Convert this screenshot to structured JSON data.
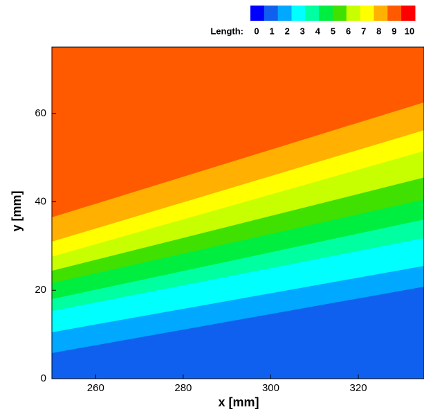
{
  "chart_data": {
    "type": "contour",
    "xlabel": "x [mm]",
    "ylabel": "y [mm]",
    "xlim": [
      250,
      335
    ],
    "ylim": [
      0,
      75
    ],
    "xticks": [
      260,
      280,
      300,
      320
    ],
    "yticks": [
      0,
      20,
      40,
      60
    ],
    "legend_title": "Length:",
    "legend_levels": [
      0,
      1,
      2,
      3,
      4,
      5,
      6,
      7,
      8,
      9,
      10
    ],
    "colors": [
      "#0000ff",
      "#1060f0",
      "#00a8ff",
      "#00ffff",
      "#00ffa0",
      "#00ee40",
      "#40e000",
      "#c8ff00",
      "#ffff00",
      "#ffb000",
      "#ff5a00",
      "#ff0000"
    ],
    "contour_lines": {
      "levels": [
        2,
        3,
        4,
        5,
        6,
        7,
        8,
        9,
        10
      ],
      "y_left": [
        5.8,
        10.5,
        15.3,
        18,
        21.6,
        24.4,
        27.6,
        31,
        36.5
      ],
      "y_right": [
        20.8,
        25.5,
        31.8,
        36,
        40.5,
        45.5,
        51.5,
        56.2,
        62.5
      ]
    }
  }
}
